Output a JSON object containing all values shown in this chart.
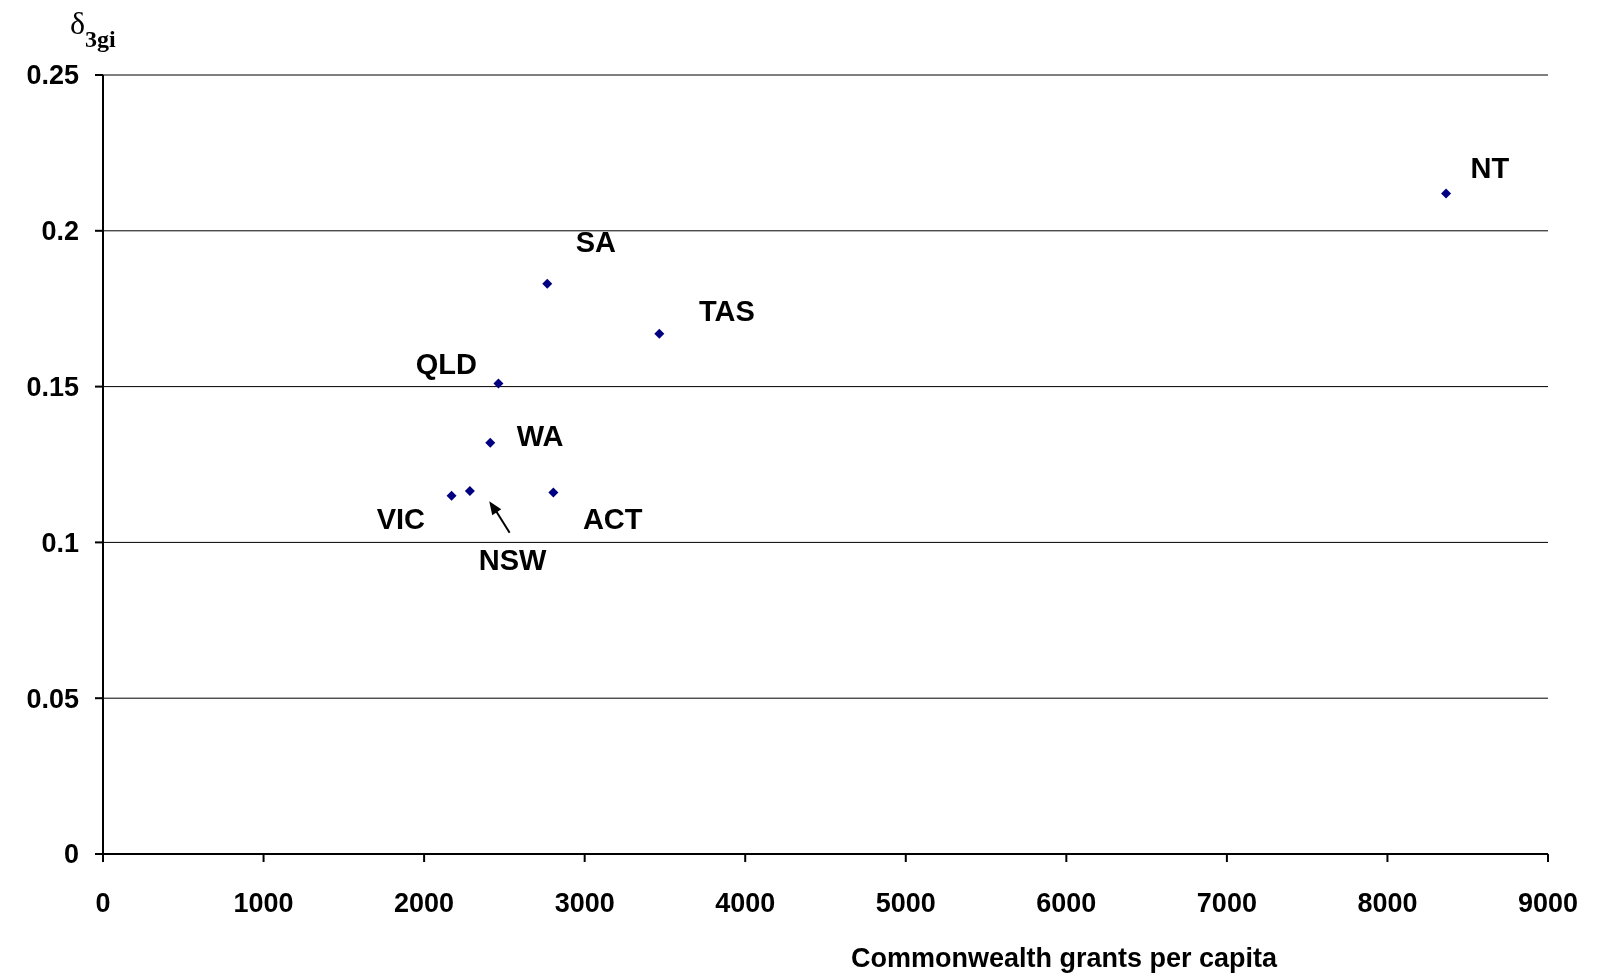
{
  "chart_data": {
    "type": "scatter",
    "xlabel": "Commonwealth grants per capita",
    "ylabel": "δ$_{3gi}$",
    "x": [
      8365,
      2767,
      3465,
      2463,
      2412,
      2171,
      2285,
      2805
    ],
    "series": [
      {
        "color": "#000080",
        "values": [
          0.212,
          0.183,
          0.167,
          0.151,
          0.132,
          0.115,
          0.1165,
          0.116
        ]
      }
    ],
    "xlim": [
      0,
      9000
    ],
    "xticks": [
      0,
      1000,
      2000,
      3000,
      4000,
      5000,
      6000,
      7000,
      8000,
      9000
    ],
    "ylim": [
      0,
      0.25
    ],
    "yticks": [
      0,
      0.05,
      0.1,
      0.15,
      0.2,
      0.25
    ],
    "grid": "y",
    "marker": "diamond",
    "annotations": [
      {
        "text": "NT",
        "x": 8365,
        "y": 0.212
      },
      {
        "text": "SA",
        "x": 2767,
        "y": 0.183
      },
      {
        "text": "TAS",
        "x": 3465,
        "y": 0.167
      },
      {
        "text": "QLD",
        "x": 2463,
        "y": 0.151
      },
      {
        "text": "WA",
        "x": 2412,
        "y": 0.132
      },
      {
        "text": "VIC",
        "x": 2171,
        "y": 0.115
      },
      {
        "text": "NSW",
        "x": 2285,
        "y": 0.1165
      },
      {
        "text": "ACT",
        "x": 2805,
        "y": 0.116
      }
    ]
  }
}
